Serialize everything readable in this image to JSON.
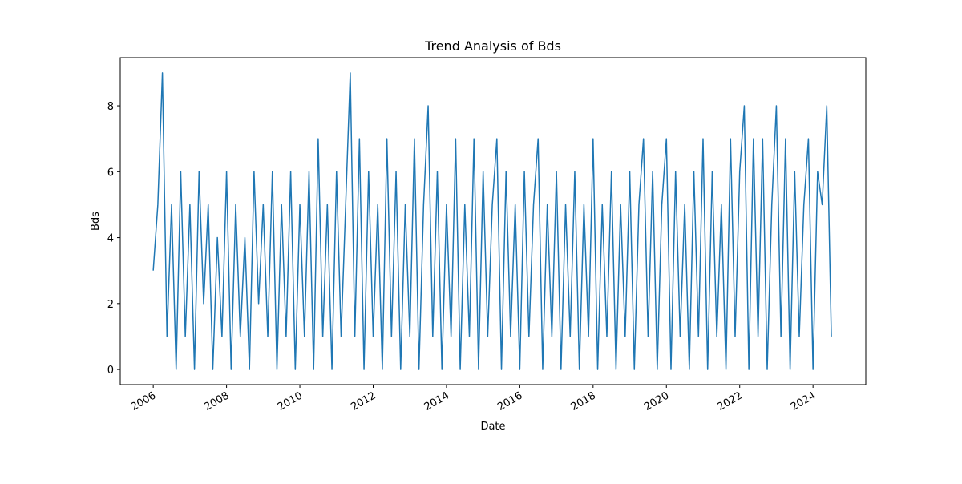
{
  "chart_data": {
    "type": "line",
    "title": "Trend Analysis of Bds",
    "x_label": "Date",
    "y_label": "Bds",
    "color": "#1f77b4",
    "x": [
      2006,
      2006.125,
      2006.25,
      2006.375,
      2006.5,
      2006.625,
      2006.75,
      2006.875,
      2007,
      2007.125,
      2007.25,
      2007.375,
      2007.5,
      2007.625,
      2007.75,
      2007.875,
      2008,
      2008.125,
      2008.25,
      2008.375,
      2008.5,
      2008.625,
      2008.75,
      2008.875,
      2009,
      2009.125,
      2009.25,
      2009.375,
      2009.5,
      2009.625,
      2009.75,
      2009.875,
      2010,
      2010.125,
      2010.25,
      2010.375,
      2010.5,
      2010.625,
      2010.75,
      2010.875,
      2011,
      2011.125,
      2011.25,
      2011.375,
      2011.5,
      2011.625,
      2011.75,
      2011.875,
      2012,
      2012.125,
      2012.25,
      2012.375,
      2012.5,
      2012.625,
      2012.75,
      2012.875,
      2013,
      2013.125,
      2013.25,
      2013.375,
      2013.5,
      2013.625,
      2013.75,
      2013.875,
      2014,
      2014.125,
      2014.25,
      2014.375,
      2014.5,
      2014.625,
      2014.75,
      2014.875,
      2015,
      2015.125,
      2015.25,
      2015.375,
      2015.5,
      2015.625,
      2015.75,
      2015.875,
      2016,
      2016.125,
      2016.25,
      2016.375,
      2016.5,
      2016.625,
      2016.75,
      2016.875,
      2017,
      2017.125,
      2017.25,
      2017.375,
      2017.5,
      2017.625,
      2017.75,
      2017.875,
      2018,
      2018.125,
      2018.25,
      2018.375,
      2018.5,
      2018.625,
      2018.75,
      2018.875,
      2019,
      2019.125,
      2019.25,
      2019.375,
      2019.5,
      2019.625,
      2019.75,
      2019.875,
      2020,
      2020.125,
      2020.25,
      2020.375,
      2020.5,
      2020.625,
      2020.75,
      2020.875,
      2021,
      2021.125,
      2021.25,
      2021.375,
      2021.5,
      2021.625,
      2021.75,
      2021.875,
      2022,
      2022.125,
      2022.25,
      2022.375,
      2022.5,
      2022.625,
      2022.75,
      2022.875,
      2023,
      2023.125,
      2023.25,
      2023.375,
      2023.5,
      2023.625,
      2023.75,
      2023.875,
      2024,
      2024.125,
      2024.25,
      2024.375,
      2024.5
    ],
    "values": [
      3,
      5,
      9,
      1,
      5,
      0,
      6,
      1,
      5,
      0,
      6,
      2,
      5,
      0,
      4,
      1,
      6,
      0,
      5,
      1,
      4,
      0,
      6,
      2,
      5,
      1,
      6,
      0,
      5,
      1,
      6,
      0,
      5,
      1,
      6,
      0,
      7,
      1,
      5,
      0,
      6,
      1,
      5,
      9,
      1,
      7,
      0,
      6,
      1,
      5,
      0,
      7,
      1,
      6,
      0,
      5,
      1,
      7,
      0,
      5,
      8,
      1,
      6,
      0,
      5,
      1,
      7,
      0,
      5,
      1,
      7,
      0,
      6,
      1,
      5,
      7,
      0,
      6,
      1,
      5,
      0,
      6,
      1,
      5,
      7,
      0,
      5,
      1,
      6,
      0,
      5,
      1,
      6,
      0,
      5,
      1,
      7,
      0,
      5,
      1,
      6,
      0,
      5,
      1,
      6,
      0,
      5,
      7,
      1,
      6,
      0,
      5,
      7,
      0,
      6,
      1,
      5,
      0,
      6,
      1,
      7,
      0,
      6,
      1,
      5,
      0,
      7,
      1,
      6,
      8,
      0,
      7,
      1,
      7,
      0,
      5,
      8,
      1,
      7,
      0,
      6,
      1,
      5,
      7,
      0,
      6,
      5,
      8,
      1
    ],
    "xlim": [
      2005.1,
      2025.44
    ],
    "xticks": [
      2006,
      2008,
      2010,
      2012,
      2014,
      2016,
      2018,
      2020,
      2022,
      2024
    ],
    "ylim": [
      -0.46,
      9.46
    ],
    "yticks": [
      0,
      2,
      4,
      6,
      8
    ]
  }
}
